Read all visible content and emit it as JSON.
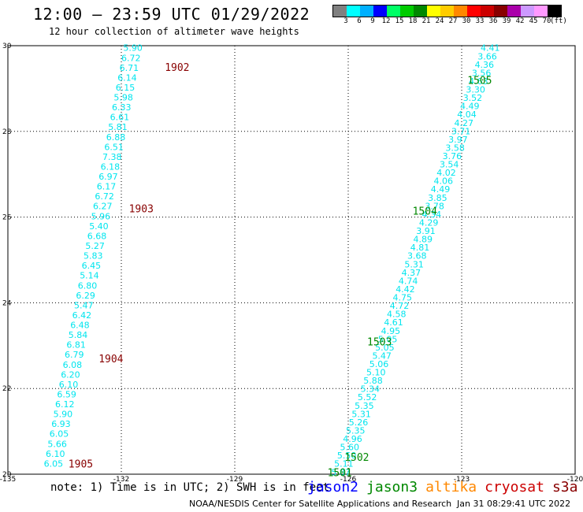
{
  "header": {
    "title": "12:00 – 23:59 UTC 01/29/2022",
    "subtitle": "12 hour collection of altimeter wave heights"
  },
  "legend": {
    "colors": [
      "#808080",
      "#00ffff",
      "#00b0ff",
      "#0000ff",
      "#00ff66",
      "#00cc00",
      "#008800",
      "#ffff00",
      "#ffcc00",
      "#ff8800",
      "#ff0000",
      "#cc0000",
      "#880000",
      "#aa00aa",
      "#cc99ff",
      "#ff99ff",
      "#000000"
    ],
    "labels": [
      "3",
      "6",
      "9",
      "12",
      "15",
      "18",
      "21",
      "24",
      "27",
      "30",
      "33",
      "36",
      "39",
      "42",
      "45",
      "70",
      "(ft)"
    ]
  },
  "footer": {
    "note": "note: 1) Time is in UTC; 2) SWH is in feet",
    "satellites": [
      {
        "name": "jason2",
        "color": "#0000ff"
      },
      {
        "name": "jason3",
        "color": "#008800"
      },
      {
        "name": "altika",
        "color": "#ff8800"
      },
      {
        "name": "cryosat",
        "color": "#cc0000"
      },
      {
        "name": "s3a",
        "color": "#880000"
      }
    ],
    "credit": "NOAA/NESDIS Center for Satellite Applications and Research",
    "timestamp": "Jan 31 08:29:41 UTC 2022"
  },
  "chart_data": {
    "type": "scatter",
    "xlim": [
      -135,
      -120
    ],
    "ylim": [
      20,
      30
    ],
    "x_ticks": [
      "-135",
      "-132",
      "-129",
      "-126",
      "-123",
      "-120"
    ],
    "y_ticks": [
      "20",
      "22",
      "24",
      "26",
      "28",
      "30"
    ],
    "grid": true,
    "value_color": "#00e5ee",
    "tracks": [
      {
        "name": "west",
        "start": [
          -134.05,
          20.25
        ],
        "end": [
          -131.95,
          29.95
        ],
        "values": [
          "6.05",
          "6.10",
          "5.66",
          "6.05",
          "6.93",
          "5.90",
          "6.12",
          "6.59",
          "6.10",
          "6.20",
          "6.08",
          "6.79",
          "6.81",
          "5.84",
          "6.48",
          "6.42",
          "5.47",
          "6.29",
          "6.80",
          "5.14",
          "6.45",
          "5.83",
          "5.27",
          "6.68",
          "5.40",
          "5.96",
          "6.27",
          "6.72",
          "6.17",
          "6.97",
          "6.18",
          "7.38",
          "6.51",
          "6.88",
          "5.81",
          "6.61",
          "6.33",
          "5.98",
          "6.15",
          "6.14",
          "6.71",
          "6.72",
          "5.90"
        ]
      },
      {
        "name": "east",
        "start": [
          -126.45,
          20.05
        ],
        "end": [
          -122.5,
          29.95
        ],
        "values": [
          "5.87",
          "5.11",
          "5.50",
          "5.60",
          "4.96",
          "5.35",
          "5.26",
          "5.31",
          "5.35",
          "5.52",
          "5.34",
          "5.88",
          "5.10",
          "5.06",
          "5.47",
          "5.05",
          "5.05",
          "4.95",
          "4.61",
          "4.58",
          "4.72",
          "4.75",
          "4.42",
          "4.74",
          "4.37",
          "5.31",
          "3.68",
          "4.81",
          "4.89",
          "3.91",
          "4.29",
          "4.34",
          "3.78",
          "3.85",
          "4.49",
          "4.06",
          "4.02",
          "3.54",
          "3.76",
          "3.58",
          "3.97",
          "3.71",
          "4.27",
          "4.04",
          "4.49",
          "3.52",
          "3.30",
          "4.63",
          "3.56",
          "4.36",
          "3.66",
          "4.41"
        ]
      }
    ],
    "annotations": [
      {
        "text": "1902",
        "x": -130.85,
        "y": 29.5,
        "color": "#880000"
      },
      {
        "text": "1903",
        "x": -131.8,
        "y": 26.2,
        "color": "#880000"
      },
      {
        "text": "1904",
        "x": -132.6,
        "y": 22.7,
        "color": "#880000"
      },
      {
        "text": "1905",
        "x": -133.4,
        "y": 20.25,
        "color": "#880000"
      },
      {
        "text": "1505",
        "x": -122.85,
        "y": 29.2,
        "color": "#008800"
      },
      {
        "text": "1504",
        "x": -124.3,
        "y": 26.15,
        "color": "#008800"
      },
      {
        "text": "1503",
        "x": -125.5,
        "y": 23.1,
        "color": "#008800"
      },
      {
        "text": "1502",
        "x": -126.1,
        "y": 20.4,
        "color": "#008800"
      },
      {
        "text": "1501",
        "x": -126.55,
        "y": 20.05,
        "color": "#008800"
      }
    ]
  }
}
